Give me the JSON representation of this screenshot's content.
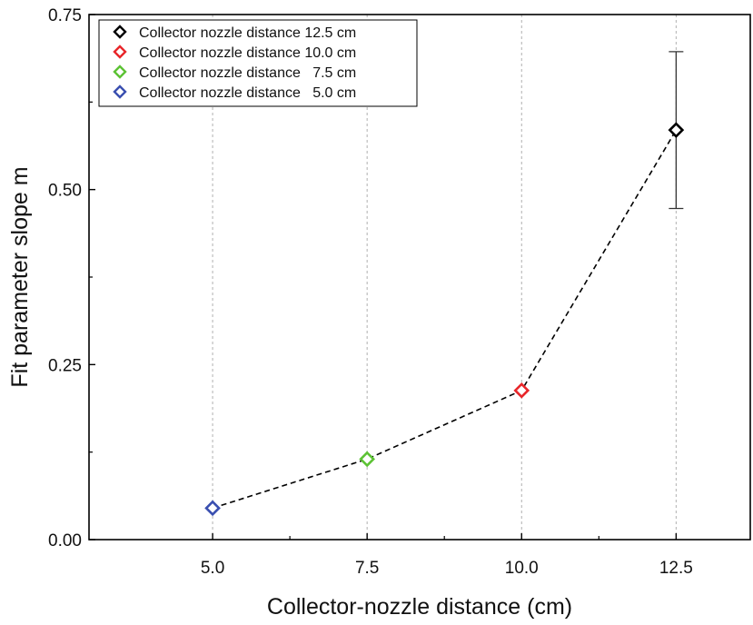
{
  "chart_data": {
    "type": "scatter",
    "xlabel": "Collector-nozzle distance (cm)",
    "ylabel": "Fit parameter slope m",
    "xlim": [
      3.0,
      13.7
    ],
    "ylim": [
      0.0,
      0.75
    ],
    "xticks": [
      5.0,
      7.5,
      10.0,
      12.5
    ],
    "xtick_labels": [
      "5.0",
      "7.5",
      "10.0",
      "12.5"
    ],
    "yticks": [
      0.0,
      0.25,
      0.5,
      0.75
    ],
    "ytick_labels": [
      "0.00",
      "0.25",
      "0.50",
      "0.75"
    ],
    "vertical_gridlines": true,
    "connecting_line": "dashed",
    "legend_position": "top-left",
    "series": [
      {
        "name": "Collector nozzle distance 12.5 cm",
        "x": 12.5,
        "y": 0.585,
        "error": 0.112,
        "color": "#000000"
      },
      {
        "name": "Collector nozzle distance 10.0 cm",
        "x": 10.0,
        "y": 0.213,
        "error": 0.0,
        "color": "#e8262a"
      },
      {
        "name": "Collector nozzle distance   7.5 cm",
        "x": 7.5,
        "y": 0.115,
        "error": 0.0,
        "color": "#5cc234"
      },
      {
        "name": "Collector nozzle distance   5.0 cm",
        "x": 5.0,
        "y": 0.045,
        "error": 0.0,
        "color": "#3a4fb0"
      }
    ]
  }
}
